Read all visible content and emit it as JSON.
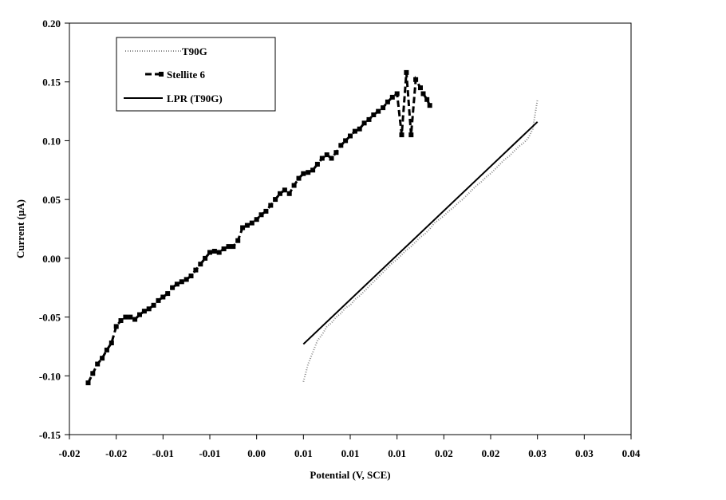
{
  "chart_data": {
    "type": "line",
    "xlabel": "Potential (V, SCE)",
    "ylabel": "Current (μA)",
    "xlim": [
      -0.02,
      0.04
    ],
    "ylim": [
      -0.15,
      0.2
    ],
    "x_ticks": [
      -0.02,
      -0.015,
      -0.01,
      -0.005,
      0.0,
      0.005,
      0.01,
      0.015,
      0.02,
      0.025,
      0.03,
      0.035,
      0.04
    ],
    "x_tick_labels": [
      "-0.02",
      "-0.02",
      "-0.01",
      "-0.01",
      "0.00",
      "0.01",
      "0.01",
      "0.01",
      "0.02",
      "0.02",
      "0.03",
      "0.03",
      "0.04"
    ],
    "y_ticks": [
      -0.15,
      -0.1,
      -0.05,
      0.0,
      0.05,
      0.1,
      0.15,
      0.2
    ],
    "y_tick_labels": [
      "-0.15",
      "-0.10",
      "-0.05",
      "0.00",
      "0.05",
      "0.10",
      "0.15",
      "0.20"
    ],
    "grid": false,
    "legend_position": "top-left",
    "series": [
      {
        "name": "T90G",
        "style": "dotted",
        "color": "#888888",
        "x": [
          0.005,
          0.0055,
          0.006,
          0.0065,
          0.007,
          0.0075,
          0.008,
          0.0085,
          0.009,
          0.0095,
          0.01,
          0.0105,
          0.011,
          0.0115,
          0.012,
          0.0125,
          0.013,
          0.0135,
          0.014,
          0.0145,
          0.015,
          0.0155,
          0.016,
          0.0165,
          0.017,
          0.0175,
          0.018,
          0.0185,
          0.019,
          0.0195,
          0.02,
          0.0205,
          0.021,
          0.0215,
          0.022,
          0.0225,
          0.023,
          0.0235,
          0.024,
          0.0245,
          0.025,
          0.0255,
          0.026,
          0.0265,
          0.027,
          0.0275,
          0.028,
          0.0285,
          0.029,
          0.0295,
          0.03
        ],
        "y": [
          -0.105,
          -0.09,
          -0.08,
          -0.07,
          -0.065,
          -0.058,
          -0.055,
          -0.05,
          -0.047,
          -0.042,
          -0.04,
          -0.035,
          -0.032,
          -0.028,
          -0.024,
          -0.02,
          -0.016,
          -0.012,
          -0.008,
          -0.004,
          -0.001,
          0.003,
          0.007,
          0.01,
          0.014,
          0.018,
          0.021,
          0.025,
          0.03,
          0.033,
          0.036,
          0.04,
          0.043,
          0.047,
          0.05,
          0.054,
          0.058,
          0.062,
          0.065,
          0.069,
          0.072,
          0.076,
          0.08,
          0.084,
          0.087,
          0.091,
          0.095,
          0.098,
          0.102,
          0.11,
          0.135
        ]
      },
      {
        "name": "Stellite 6",
        "style": "dashed-square",
        "color": "#000000",
        "x": [
          -0.018,
          -0.0175,
          -0.017,
          -0.0165,
          -0.016,
          -0.0155,
          -0.015,
          -0.0145,
          -0.014,
          -0.0135,
          -0.013,
          -0.0125,
          -0.012,
          -0.0115,
          -0.011,
          -0.0105,
          -0.01,
          -0.0095,
          -0.009,
          -0.0085,
          -0.008,
          -0.0075,
          -0.007,
          -0.0065,
          -0.006,
          -0.0055,
          -0.005,
          -0.0045,
          -0.004,
          -0.0035,
          -0.003,
          -0.0025,
          -0.002,
          -0.0015,
          -0.001,
          -0.0005,
          0.0,
          0.0005,
          0.001,
          0.0015,
          0.002,
          0.0025,
          0.003,
          0.0035,
          0.004,
          0.0045,
          0.005,
          0.0055,
          0.006,
          0.0065,
          0.007,
          0.0075,
          0.008,
          0.0085,
          0.009,
          0.0095,
          0.01,
          0.0105,
          0.011,
          0.0115,
          0.012,
          0.0125,
          0.013,
          0.0135,
          0.014,
          0.0145,
          0.015,
          0.0155,
          0.016,
          0.0165,
          0.017,
          0.0175,
          0.0178,
          0.0182,
          0.0185
        ],
        "y": [
          -0.106,
          -0.098,
          -0.09,
          -0.085,
          -0.078,
          -0.072,
          -0.058,
          -0.053,
          -0.05,
          -0.05,
          -0.052,
          -0.048,
          -0.045,
          -0.043,
          -0.04,
          -0.036,
          -0.033,
          -0.03,
          -0.025,
          -0.022,
          -0.02,
          -0.018,
          -0.015,
          -0.01,
          -0.005,
          0.0,
          0.005,
          0.006,
          0.005,
          0.008,
          0.01,
          0.01,
          0.015,
          0.026,
          0.028,
          0.03,
          0.033,
          0.037,
          0.04,
          0.045,
          0.05,
          0.055,
          0.058,
          0.055,
          0.062,
          0.068,
          0.072,
          0.073,
          0.075,
          0.08,
          0.085,
          0.088,
          0.085,
          0.09,
          0.096,
          0.1,
          0.104,
          0.108,
          0.11,
          0.115,
          0.118,
          0.122,
          0.125,
          0.128,
          0.133,
          0.137,
          0.14,
          0.105,
          0.158,
          0.105,
          0.152,
          0.145,
          0.14,
          0.135,
          0.13
        ]
      },
      {
        "name": "LPR (T90G)",
        "style": "solid",
        "color": "#000000",
        "x": [
          0.005,
          0.03
        ],
        "y": [
          -0.073,
          0.116
        ]
      }
    ]
  }
}
